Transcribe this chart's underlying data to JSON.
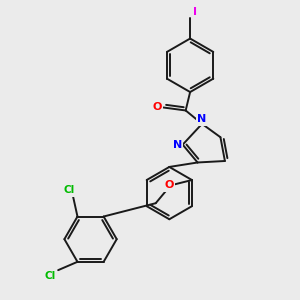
{
  "bg_color": "#ebebeb",
  "bond_color": "#1a1a1a",
  "atom_colors": {
    "N": "#0000ff",
    "O": "#ff0000",
    "Cl": "#00bb00",
    "I": "#ee00ee"
  },
  "figsize": [
    3.0,
    3.0
  ],
  "dpi": 100
}
